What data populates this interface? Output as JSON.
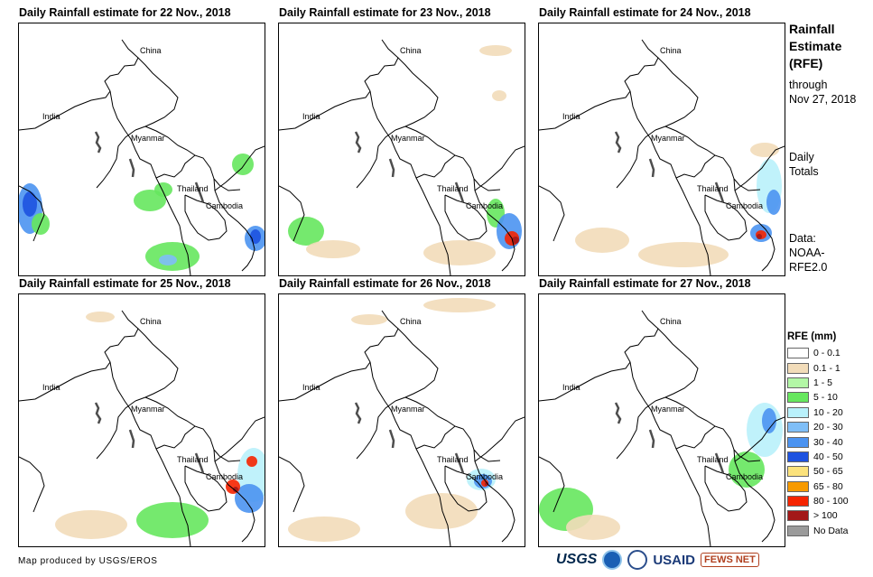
{
  "panels": [
    {
      "title": "Daily Rainfall estimate for 22 Nov., 2018"
    },
    {
      "title": "Daily Rainfall estimate for 23 Nov., 2018"
    },
    {
      "title": "Daily Rainfall estimate for 24 Nov., 2018"
    },
    {
      "title": "Daily Rainfall estimate for 25 Nov., 2018"
    },
    {
      "title": "Daily Rainfall estimate for 26 Nov., 2018"
    },
    {
      "title": "Daily Rainfall estimate for 27 Nov., 2018"
    }
  ],
  "countries": [
    "China",
    "India",
    "Myanmar",
    "Thailand",
    "Cambodia"
  ],
  "side": {
    "title_lines": [
      "Rainfall",
      "Estimate",
      "(RFE)"
    ],
    "through_lines": [
      "through",
      "Nov 27, 2018"
    ],
    "totals_lines": [
      "Daily",
      "Totals"
    ],
    "data_lines": [
      "Data:",
      "NOAA-",
      "RFE2.0"
    ]
  },
  "legend": {
    "title": "RFE (mm)",
    "items": [
      {
        "label": "0 - 0.1",
        "color": "#ffffff"
      },
      {
        "label": "0.1 - 1",
        "color": "#f2dcb9"
      },
      {
        "label": "1 - 5",
        "color": "#b3f7a6"
      },
      {
        "label": "5 - 10",
        "color": "#66e75e"
      },
      {
        "label": "10 - 20",
        "color": "#b9f1fb"
      },
      {
        "label": "20 - 30",
        "color": "#7fbef7"
      },
      {
        "label": "30 - 40",
        "color": "#4b93f1"
      },
      {
        "label": "40 - 50",
        "color": "#1d52e0"
      },
      {
        "label": "50 - 65",
        "color": "#fbe27c"
      },
      {
        "label": "65 - 80",
        "color": "#f79a00"
      },
      {
        "label": "80 - 100",
        "color": "#f52400"
      },
      {
        "label": "> 100",
        "color": "#a31818"
      },
      {
        "label": "No Data",
        "color": "#9b9b9b"
      }
    ]
  },
  "credit": "Map produced by USGS/EROS",
  "logos": {
    "usgs": "USGS",
    "usaid": "USAID",
    "fews": "FEWS NET"
  },
  "colors": {
    "border": "#000000",
    "river": "#4d4d4d"
  }
}
